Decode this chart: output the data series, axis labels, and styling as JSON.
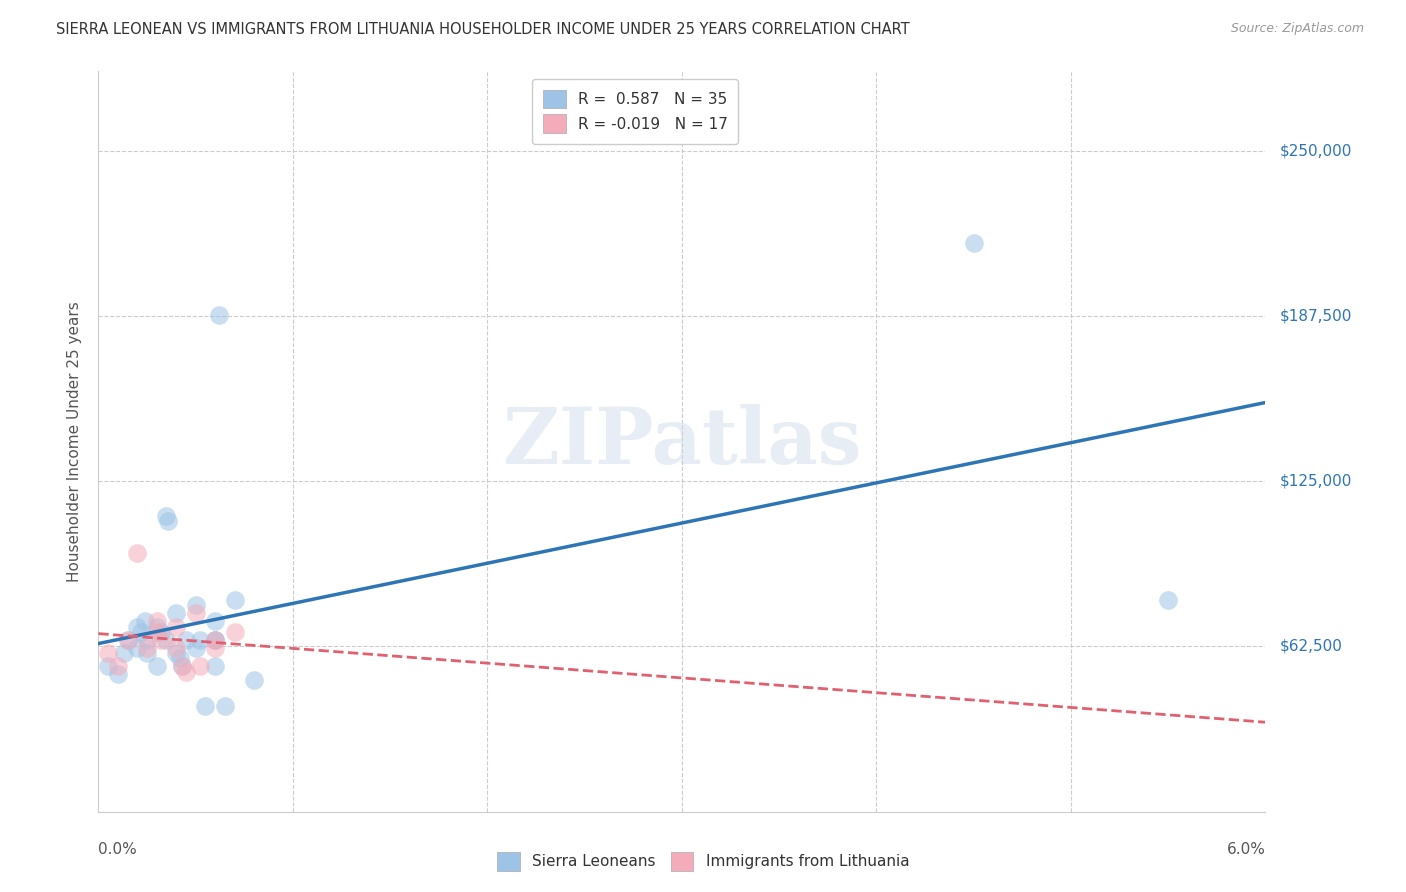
{
  "title": "SIERRA LEONEAN VS IMMIGRANTS FROM LITHUANIA HOUSEHOLDER INCOME UNDER 25 YEARS CORRELATION CHART",
  "source": "Source: ZipAtlas.com",
  "ylabel": "Householder Income Under 25 years",
  "xmin": 0.0,
  "xmax": 0.06,
  "ymin": 0,
  "ymax": 280000,
  "yticks": [
    62500,
    125000,
    187500,
    250000
  ],
  "ytick_labels": [
    "$62,500",
    "$125,000",
    "$187,500",
    "$250,000"
  ],
  "watermark": "ZIPatlas",
  "color_sierra": "#9DC3E6",
  "color_lithuania": "#F4ACBA",
  "trendline_sierra_color": "#2E75B6",
  "trendline_lithuania_color": "#E06070",
  "sierra_x": [
    0.0005,
    0.001,
    0.0013,
    0.0015,
    0.002,
    0.002,
    0.0022,
    0.0024,
    0.0025,
    0.0025,
    0.003,
    0.003,
    0.0032,
    0.0035,
    0.0035,
    0.0036,
    0.004,
    0.004,
    0.0042,
    0.0043,
    0.0045,
    0.005,
    0.005,
    0.0052,
    0.0055,
    0.006,
    0.006,
    0.006,
    0.0062,
    0.0065,
    0.006,
    0.007,
    0.008,
    0.045,
    0.055
  ],
  "sierra_y": [
    55000,
    52000,
    60000,
    65000,
    70000,
    62000,
    68000,
    72000,
    65000,
    60000,
    70000,
    55000,
    68000,
    65000,
    112000,
    110000,
    75000,
    60000,
    58000,
    55000,
    65000,
    62000,
    78000,
    65000,
    40000,
    72000,
    65000,
    55000,
    188000,
    40000,
    65000,
    80000,
    50000,
    215000,
    80000
  ],
  "lithuania_x": [
    0.0005,
    0.001,
    0.0015,
    0.002,
    0.0025,
    0.003,
    0.003,
    0.0032,
    0.004,
    0.004,
    0.0043,
    0.0045,
    0.005,
    0.0052,
    0.006,
    0.006,
    0.007
  ],
  "lithuania_y": [
    60000,
    55000,
    65000,
    98000,
    62000,
    68000,
    72000,
    65000,
    70000,
    62000,
    55000,
    53000,
    75000,
    55000,
    65000,
    62000,
    68000
  ],
  "dot_size": 180,
  "alpha": 0.55,
  "grid_color": "#CCCCCC",
  "bg_color": "#FFFFFF",
  "title_color": "#333333",
  "axis_label_color": "#555555",
  "right_label_color": "#2E75B6"
}
